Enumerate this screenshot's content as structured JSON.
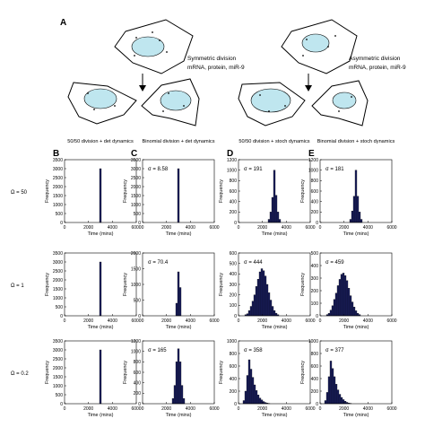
{
  "panel_a": {
    "letter": "A",
    "left_caption": [
      "Symmetric division",
      "mRNA, protein, miR-9"
    ],
    "right_caption": [
      "Asymmetric division",
      "mRNA, protein, miR-9"
    ]
  },
  "columns": [
    {
      "letter": "B",
      "title": "50/50 division + det dynamics"
    },
    {
      "letter": "C",
      "title": "Binomial division + det dynamics"
    },
    {
      "letter": "D",
      "title": "50/50 division + stoch dynamics"
    },
    {
      "letter": "E",
      "title": "Binomial division + stoch dynamics"
    }
  ],
  "rows": [
    {
      "label": "Ω = 50"
    },
    {
      "label": "Ω = 1"
    },
    {
      "label": "Ω = 0.2"
    }
  ],
  "colors": {
    "bar": "#1a1f5e",
    "nucleus": "#bfe6ef"
  },
  "chart_data": [
    {
      "type": "bar",
      "title": "",
      "xlabel": "Time (mins)",
      "ylabel": "Frequency",
      "xlim": [
        0,
        6000
      ],
      "ylim": [
        0,
        3500
      ],
      "xticks": [
        0,
        2000,
        4000,
        6000
      ],
      "yticks": [
        0,
        500,
        1000,
        1500,
        2000,
        2500,
        3000,
        3500
      ],
      "annotation": "",
      "bin_width": 150,
      "x": [
        3000
      ],
      "values": [
        3000
      ]
    },
    {
      "type": "bar",
      "title": "",
      "xlabel": "Time (mins)",
      "ylabel": "Frequency",
      "xlim": [
        0,
        6000
      ],
      "ylim": [
        0,
        3500
      ],
      "xticks": [
        0,
        2000,
        4000,
        6000
      ],
      "yticks": [
        0,
        500,
        1000,
        1500,
        2000,
        2500,
        3000,
        3500
      ],
      "annotation": "σ = 8.58",
      "bin_width": 150,
      "x": [
        3000
      ],
      "values": [
        3000
      ]
    },
    {
      "type": "bar",
      "title": "",
      "xlabel": "Time (mins)",
      "ylabel": "Frequency",
      "xlim": [
        0,
        6000
      ],
      "ylim": [
        0,
        1200
      ],
      "xticks": [
        0,
        2000,
        4000,
        6000
      ],
      "yticks": [
        0,
        200,
        400,
        600,
        800,
        1000,
        1200
      ],
      "annotation": "σ = 191",
      "bin_width": 150,
      "x": [
        2550,
        2700,
        2850,
        3000,
        3150,
        3300,
        3450
      ],
      "values": [
        60,
        200,
        480,
        1000,
        520,
        200,
        60
      ]
    },
    {
      "type": "bar",
      "title": "",
      "xlabel": "Time (mins)",
      "ylabel": "Frequency",
      "xlim": [
        0,
        6000
      ],
      "ylim": [
        0,
        1200
      ],
      "xticks": [
        0,
        2000,
        4000,
        6000
      ],
      "yticks": [
        0,
        200,
        400,
        600,
        800,
        1000,
        1200
      ],
      "annotation": "σ = 181",
      "bin_width": 150,
      "x": [
        2550,
        2700,
        2850,
        3000,
        3150,
        3300,
        3450
      ],
      "values": [
        60,
        220,
        500,
        1000,
        500,
        200,
        60
      ]
    },
    {
      "type": "bar",
      "title": "",
      "xlabel": "Time (mins)",
      "ylabel": "Frequency",
      "xlim": [
        0,
        6000
      ],
      "ylim": [
        0,
        3500
      ],
      "xticks": [
        0,
        2000,
        4000,
        6000
      ],
      "yticks": [
        0,
        500,
        1000,
        1500,
        2000,
        2500,
        3000,
        3500
      ],
      "annotation": "",
      "bin_width": 150,
      "x": [
        3000
      ],
      "values": [
        3000
      ]
    },
    {
      "type": "bar",
      "title": "",
      "xlabel": "Time (mins)",
      "ylabel": "Frequency",
      "xlim": [
        0,
        6000
      ],
      "ylim": [
        0,
        2000
      ],
      "xticks": [
        0,
        2000,
        4000,
        6000
      ],
      "yticks": [
        0,
        500,
        1000,
        1500,
        2000
      ],
      "annotation": "σ = 70.4",
      "bin_width": 150,
      "x": [
        2850,
        3000,
        3150
      ],
      "values": [
        400,
        1400,
        900
      ]
    },
    {
      "type": "bar",
      "title": "",
      "xlabel": "Time (mins)",
      "ylabel": "Frequency",
      "xlim": [
        0,
        6000
      ],
      "ylim": [
        0,
        600
      ],
      "xticks": [
        0,
        2000,
        4000,
        6000
      ],
      "yticks": [
        0,
        100,
        200,
        300,
        400,
        500,
        600
      ],
      "annotation": "σ = 444",
      "bin_width": 150,
      "x": [
        600,
        750,
        900,
        1050,
        1200,
        1350,
        1500,
        1650,
        1800,
        1950,
        2100,
        2250,
        2400,
        2550,
        2700,
        2850,
        3000,
        3150,
        3300
      ],
      "values": [
        10,
        20,
        50,
        90,
        140,
        200,
        280,
        350,
        420,
        450,
        430,
        380,
        300,
        220,
        150,
        90,
        50,
        25,
        10
      ]
    },
    {
      "type": "bar",
      "title": "",
      "xlabel": "Time (mins)",
      "ylabel": "Frequency",
      "xlim": [
        0,
        6000
      ],
      "ylim": [
        0,
        500
      ],
      "xticks": [
        0,
        2000,
        4000,
        6000
      ],
      "yticks": [
        0,
        100,
        200,
        300,
        400,
        500
      ],
      "annotation": "σ = 459",
      "bin_width": 150,
      "x": [
        600,
        750,
        900,
        1050,
        1200,
        1350,
        1500,
        1650,
        1800,
        1950,
        2100,
        2250,
        2400,
        2550,
        2700,
        2850,
        3000,
        3150,
        3300
      ],
      "values": [
        10,
        20,
        45,
        80,
        130,
        180,
        240,
        290,
        330,
        340,
        320,
        280,
        220,
        160,
        110,
        70,
        40,
        20,
        10
      ]
    },
    {
      "type": "bar",
      "title": "",
      "xlabel": "Time (mins)",
      "ylabel": "Frequency",
      "xlim": [
        0,
        6000
      ],
      "ylim": [
        0,
        3500
      ],
      "xticks": [
        0,
        2000,
        4000,
        6000
      ],
      "yticks": [
        0,
        500,
        1000,
        1500,
        2000,
        2500,
        3000,
        3500
      ],
      "annotation": "",
      "bin_width": 150,
      "x": [
        3000
      ],
      "values": [
        3000
      ]
    },
    {
      "type": "bar",
      "title": "",
      "xlabel": "Time (mins)",
      "ylabel": "Frequency",
      "xlim": [
        0,
        6000
      ],
      "ylim": [
        0,
        1200
      ],
      "xticks": [
        0,
        2000,
        4000,
        6000
      ],
      "yticks": [
        0,
        200,
        400,
        600,
        800,
        1000,
        1200
      ],
      "annotation": "σ = 165",
      "bin_width": 150,
      "x": [
        2550,
        2700,
        2850,
        3000,
        3150,
        3300,
        3450
      ],
      "values": [
        100,
        350,
        800,
        1050,
        800,
        350,
        100
      ]
    },
    {
      "type": "bar",
      "title": "",
      "xlabel": "Time (mins)",
      "ylabel": "Frequency",
      "xlim": [
        0,
        6000
      ],
      "ylim": [
        0,
        1000
      ],
      "xticks": [
        0,
        2000,
        4000,
        6000
      ],
      "yticks": [
        0,
        200,
        400,
        600,
        800,
        1000
      ],
      "annotation": "σ = 358",
      "bin_width": 150,
      "x": [
        450,
        600,
        750,
        900,
        1050,
        1200,
        1350,
        1500,
        1650,
        1800,
        1950,
        2100,
        2250,
        2400,
        2550
      ],
      "values": [
        50,
        200,
        450,
        700,
        550,
        420,
        300,
        210,
        140,
        90,
        60,
        35,
        20,
        10,
        5
      ]
    },
    {
      "type": "bar",
      "title": "",
      "xlabel": "Time (mins)",
      "ylabel": "Frequency",
      "xlim": [
        0,
        6000
      ],
      "ylim": [
        0,
        1000
      ],
      "xticks": [
        0,
        2000,
        4000,
        6000
      ],
      "yticks": [
        0,
        200,
        400,
        600,
        800,
        1000
      ],
      "annotation": "σ = 377",
      "bin_width": 150,
      "x": [
        450,
        600,
        750,
        900,
        1050,
        1200,
        1350,
        1500,
        1650,
        1800,
        1950,
        2100,
        2250,
        2400,
        2550
      ],
      "values": [
        50,
        180,
        430,
        680,
        560,
        430,
        310,
        220,
        150,
        100,
        65,
        40,
        22,
        12,
        6
      ]
    }
  ]
}
